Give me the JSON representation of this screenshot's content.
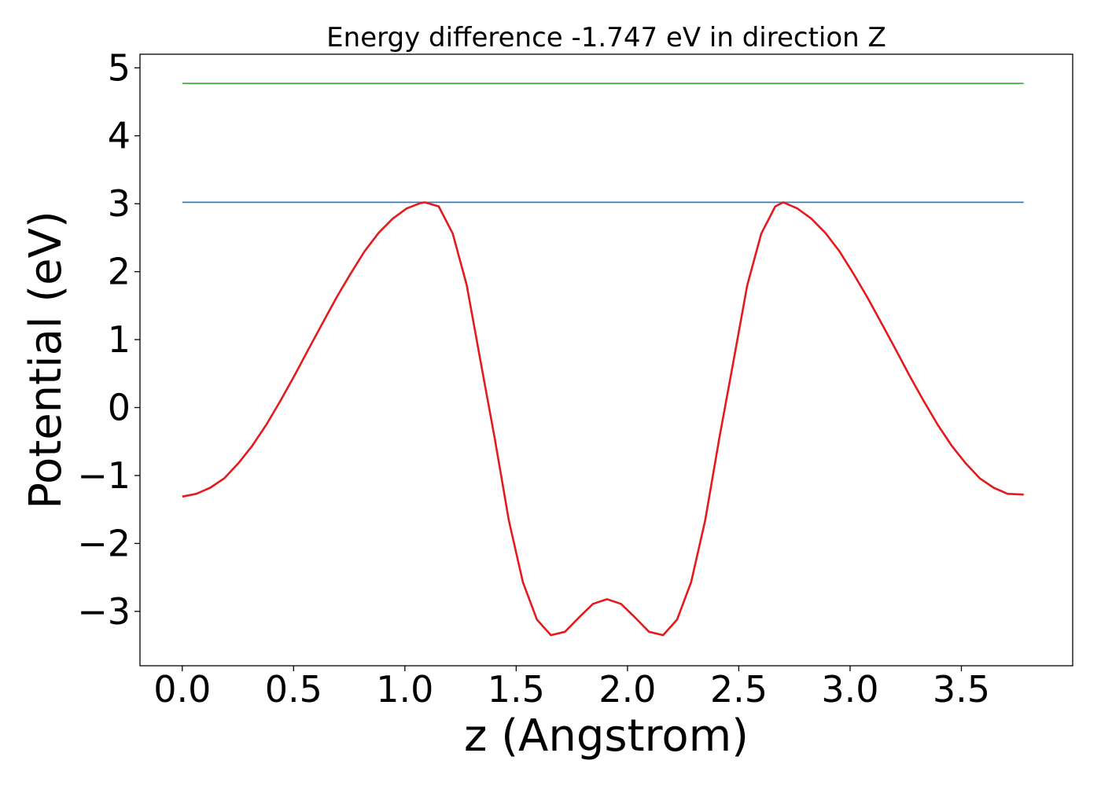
{
  "chart_data": {
    "type": "line",
    "title": "Energy difference -1.747 eV in direction Z",
    "xlabel": "z (Angstrom)",
    "ylabel": "Potential (eV)",
    "xlim": [
      -0.19,
      4.0
    ],
    "ylim": [
      -3.8,
      5.2
    ],
    "x_ticks": [
      0.0,
      0.5,
      1.0,
      1.5,
      2.0,
      2.5,
      3.0,
      3.5
    ],
    "x_tick_labels": [
      "0.0",
      "0.5",
      "1.0",
      "1.5",
      "2.0",
      "2.5",
      "3.0",
      "3.5"
    ],
    "y_ticks": [
      -3,
      -2,
      -1,
      0,
      1,
      2,
      3,
      4,
      5
    ],
    "y_tick_labels": [
      "−3",
      "−2",
      "−1",
      "0",
      "1",
      "2",
      "3",
      "4",
      "5"
    ],
    "grid": false,
    "colors": {
      "potential": "#e41a1c",
      "maximum": "#377eb8",
      "upper": "#4daf4a"
    },
    "series": [
      {
        "key": "upper",
        "x": [
          0.0,
          3.78
        ],
        "y": [
          4.77,
          4.77
        ]
      },
      {
        "key": "maximum",
        "x": [
          0.0,
          3.78
        ],
        "y": [
          3.02,
          3.02
        ]
      },
      {
        "key": "potential",
        "x": [
          0.0,
          0.063,
          0.126,
          0.189,
          0.252,
          0.315,
          0.378,
          0.441,
          0.504,
          0.567,
          0.63,
          0.693,
          0.756,
          0.819,
          0.882,
          0.945,
          1.008,
          1.071,
          1.089,
          1.152,
          1.215,
          1.278,
          1.341,
          1.404,
          1.467,
          1.53,
          1.593,
          1.656,
          1.719,
          1.782,
          1.845,
          1.908,
          1.971,
          2.034,
          2.097,
          2.16,
          2.223,
          2.286,
          2.349,
          2.412,
          2.475,
          2.538,
          2.601,
          2.664,
          2.7,
          2.763,
          2.826,
          2.889,
          2.952,
          3.015,
          3.078,
          3.141,
          3.204,
          3.267,
          3.33,
          3.393,
          3.456,
          3.519,
          3.582,
          3.645,
          3.708,
          3.78
        ],
        "y": [
          -1.31,
          -1.27,
          -1.18,
          -1.04,
          -0.82,
          -0.56,
          -0.25,
          0.1,
          0.47,
          0.86,
          1.24,
          1.62,
          1.97,
          2.3,
          2.57,
          2.78,
          2.93,
          3.01,
          3.02,
          2.96,
          2.56,
          1.8,
          0.66,
          -0.46,
          -1.66,
          -2.57,
          -3.12,
          -3.35,
          -3.3,
          -3.09,
          -2.89,
          -2.82,
          -2.89,
          -3.09,
          -3.3,
          -3.35,
          -3.12,
          -2.57,
          -1.66,
          -0.46,
          0.66,
          1.8,
          2.56,
          2.96,
          3.02,
          2.93,
          2.78,
          2.57,
          2.3,
          1.97,
          1.62,
          1.24,
          0.86,
          0.47,
          0.1,
          -0.25,
          -0.56,
          -0.82,
          -1.04,
          -1.18,
          -1.27,
          -1.28
        ]
      }
    ]
  }
}
